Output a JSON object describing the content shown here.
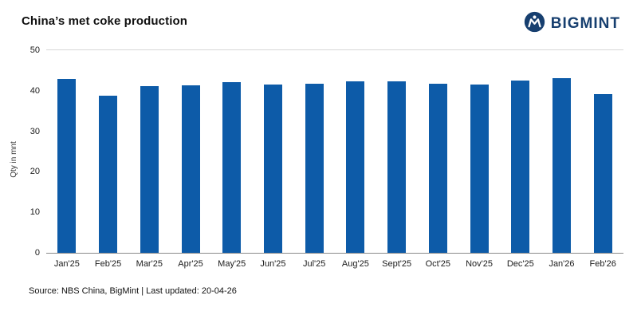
{
  "header": {
    "title": "China’s met coke production",
    "logo_text": "BIGMINT"
  },
  "footer": {
    "source": "Source: NBS China, BigMint | Last updated: 20-04-26"
  },
  "colors": {
    "bar": "#0d5ba8",
    "logo_navy": "#173f6f",
    "axis_line": "#8a8a8a"
  },
  "chart_data": {
    "type": "bar",
    "title": "China’s met coke production",
    "xlabel": "",
    "ylabel": "Qty in mnt",
    "ylim": [
      0,
      50
    ],
    "yticks": [
      0,
      10,
      20,
      30,
      40,
      50
    ],
    "grid": false,
    "legend": false,
    "categories": [
      "Jan'25",
      "Feb'25",
      "Mar'25",
      "Apr'25",
      "May'25",
      "Jun'25",
      "Jul'25",
      "Aug'25",
      "Sept'25",
      "Oct'25",
      "Nov'25",
      "Dec'25",
      "Jan'26",
      "Feb'26"
    ],
    "values": [
      43.0,
      38.7,
      41.2,
      41.4,
      42.2,
      41.5,
      41.8,
      42.3,
      42.3,
      41.8,
      41.6,
      42.5,
      43.2,
      39.1
    ],
    "bar_color": "#0d5ba8"
  }
}
